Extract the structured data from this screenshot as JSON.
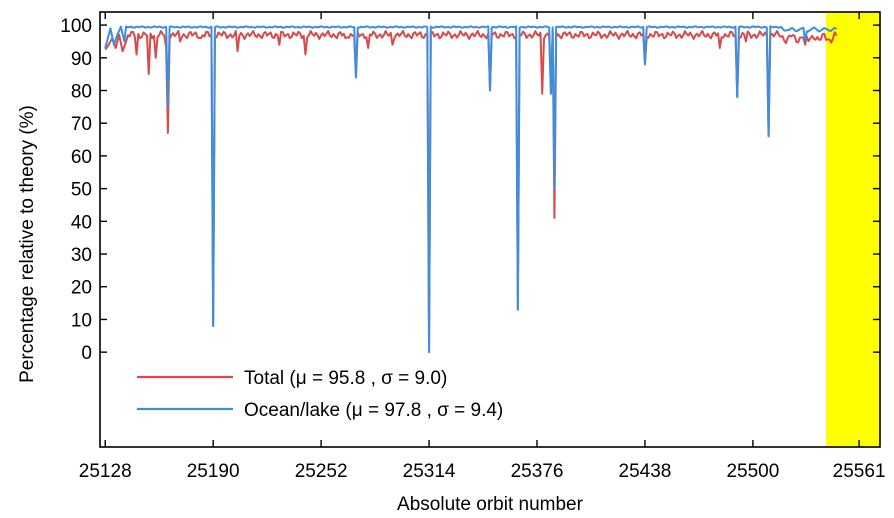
{
  "chart_data": {
    "type": "line",
    "xlabel": "Absolute orbit number",
    "ylabel": "Percentage relative to theory (%)",
    "xlim": [
      25125,
      25573
    ],
    "ylim": [
      -29,
      104
    ],
    "x_ticks": [
      25128,
      25190,
      25252,
      25314,
      25376,
      25438,
      25500,
      25561
    ],
    "y_ticks": [
      0,
      10,
      20,
      30,
      40,
      50,
      60,
      70,
      80,
      90,
      100
    ],
    "grid": false,
    "legend_position": "bottom-left",
    "highlight_band": {
      "x_start": 25542,
      "x_end": 25573,
      "color": "#ffff00"
    },
    "series": [
      {
        "name": "Total",
        "mu": "95.8",
        "sigma": "9.0",
        "color": "#d94a4a",
        "baseline": 97,
        "wobble": 2.5,
        "start_points": [
          [
            25128,
            92.5
          ],
          [
            25130,
            94
          ],
          [
            25132,
            96
          ],
          [
            25134,
            93
          ],
          [
            25136,
            97
          ],
          [
            25138,
            92
          ],
          [
            25140,
            95
          ]
        ],
        "dips": [
          [
            25146,
            91
          ],
          [
            25153,
            85
          ],
          [
            25157,
            90
          ],
          [
            25163,
            93
          ],
          [
            25164,
            67
          ],
          [
            25171,
            95
          ],
          [
            25183,
            96
          ],
          [
            25190,
            8
          ],
          [
            25204,
            92
          ],
          [
            25228,
            94
          ],
          [
            25243,
            91
          ],
          [
            25266,
            96
          ],
          [
            25272,
            84
          ],
          [
            25279,
            93
          ],
          [
            25293,
            94
          ],
          [
            25314,
            0
          ],
          [
            25349,
            80
          ],
          [
            25365,
            13
          ],
          [
            25379,
            79
          ],
          [
            25384,
            79
          ],
          [
            25386,
            41
          ],
          [
            25438,
            88
          ],
          [
            25481,
            93
          ],
          [
            25491,
            78
          ],
          [
            25496,
            95
          ],
          [
            25509,
            66
          ],
          [
            25530,
            94
          ]
        ]
      },
      {
        "name": "Ocean/lake",
        "mu": "97.8",
        "sigma": "9.4",
        "color": "#3c8fe0",
        "baseline": 99.4,
        "wobble": 0.5,
        "start_points": [
          [
            25128,
            93
          ],
          [
            25131,
            99
          ],
          [
            25133,
            94
          ],
          [
            25135,
            97
          ],
          [
            25137,
            99.5
          ],
          [
            25139,
            95
          ]
        ],
        "dips": [
          [
            25164,
            75
          ],
          [
            25190,
            8
          ],
          [
            25272,
            84
          ],
          [
            25314,
            0
          ],
          [
            25349,
            80
          ],
          [
            25365,
            13
          ],
          [
            25384,
            79
          ],
          [
            25386,
            50
          ],
          [
            25438,
            88
          ],
          [
            25491,
            78
          ],
          [
            25509,
            66
          ],
          [
            25530,
            95
          ]
        ]
      }
    ]
  }
}
